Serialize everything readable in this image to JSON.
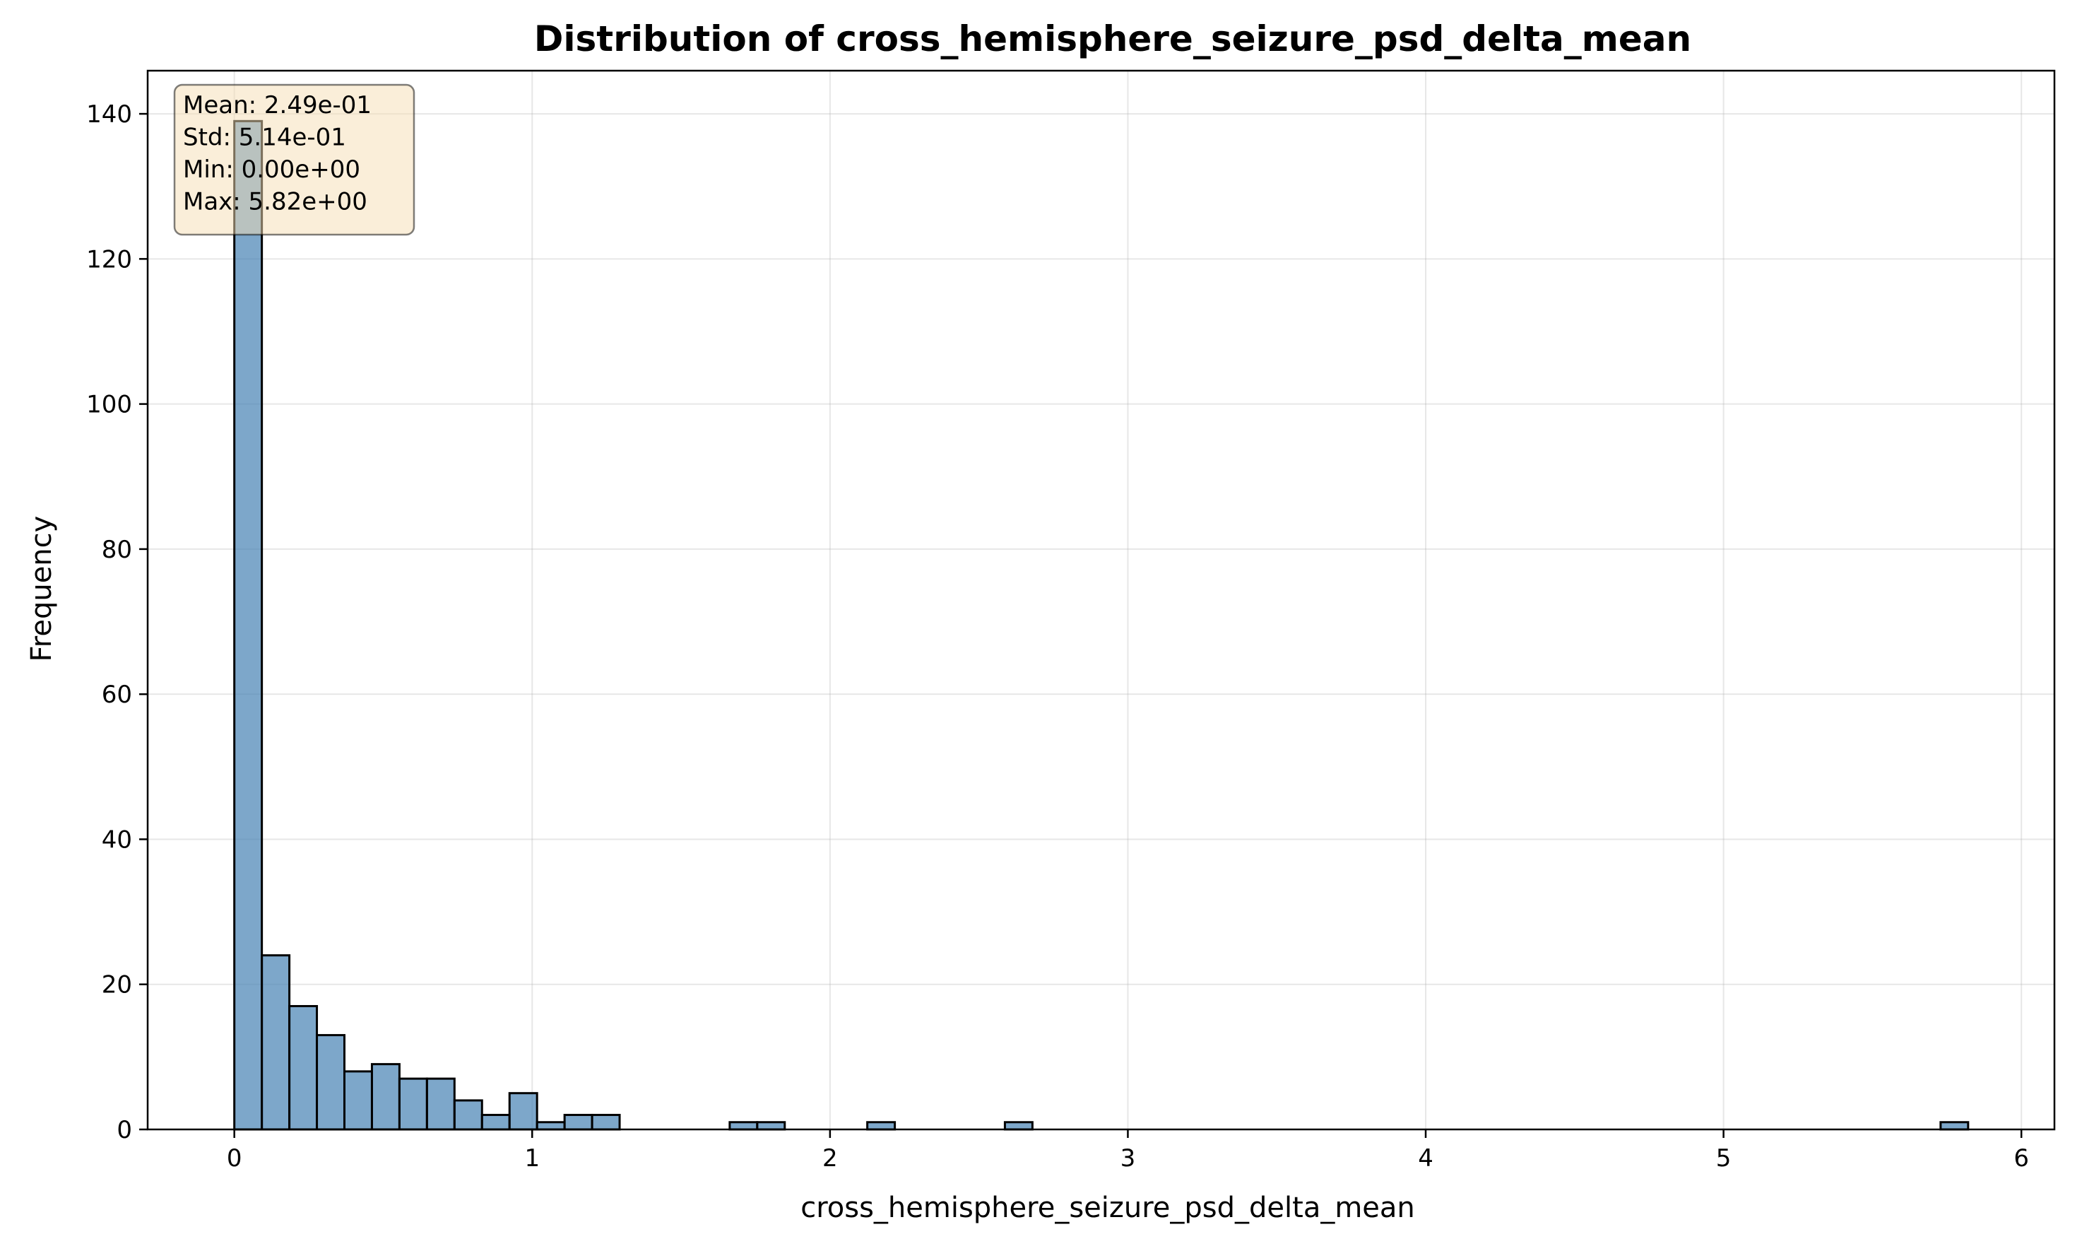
{
  "chart_data": {
    "type": "bar",
    "title": "Distribution of cross_hemisphere_seizure_psd_delta_mean",
    "xlabel": "cross_hemisphere_seizure_psd_delta_mean",
    "ylabel": "Frequency",
    "xlim": [
      -0.291,
      6.111
    ],
    "ylim": [
      0,
      145.95
    ],
    "grid": true,
    "bar_color": "#4682b4",
    "bar_edge_color": "#000000",
    "xticks": [
      0,
      1,
      2,
      3,
      4,
      5,
      6
    ],
    "yticks": [
      0,
      20,
      40,
      60,
      80,
      100,
      120,
      140
    ],
    "bin_start": 0.0,
    "bin_width": 0.0924,
    "counts": [
      139,
      24,
      17,
      13,
      8,
      9,
      7,
      7,
      4,
      2,
      5,
      1,
      2,
      2,
      0,
      0,
      0,
      0,
      1,
      1,
      0,
      0,
      0,
      1,
      0,
      0,
      0,
      0,
      1,
      0,
      0,
      0,
      0,
      0,
      0,
      0,
      0,
      0,
      0,
      0,
      0,
      0,
      0,
      0,
      0,
      0,
      0,
      0,
      0,
      0,
      0,
      0,
      0,
      0,
      0,
      0,
      0,
      0,
      0,
      0,
      0,
      0,
      1
    ],
    "stats_box": {
      "lines": [
        "Mean: 2.49e-01",
        "Std: 5.14e-01",
        "Min: 0.00e+00",
        "Max: 5.82e+00"
      ],
      "background": "#f5deb3",
      "position": "top-left"
    }
  }
}
